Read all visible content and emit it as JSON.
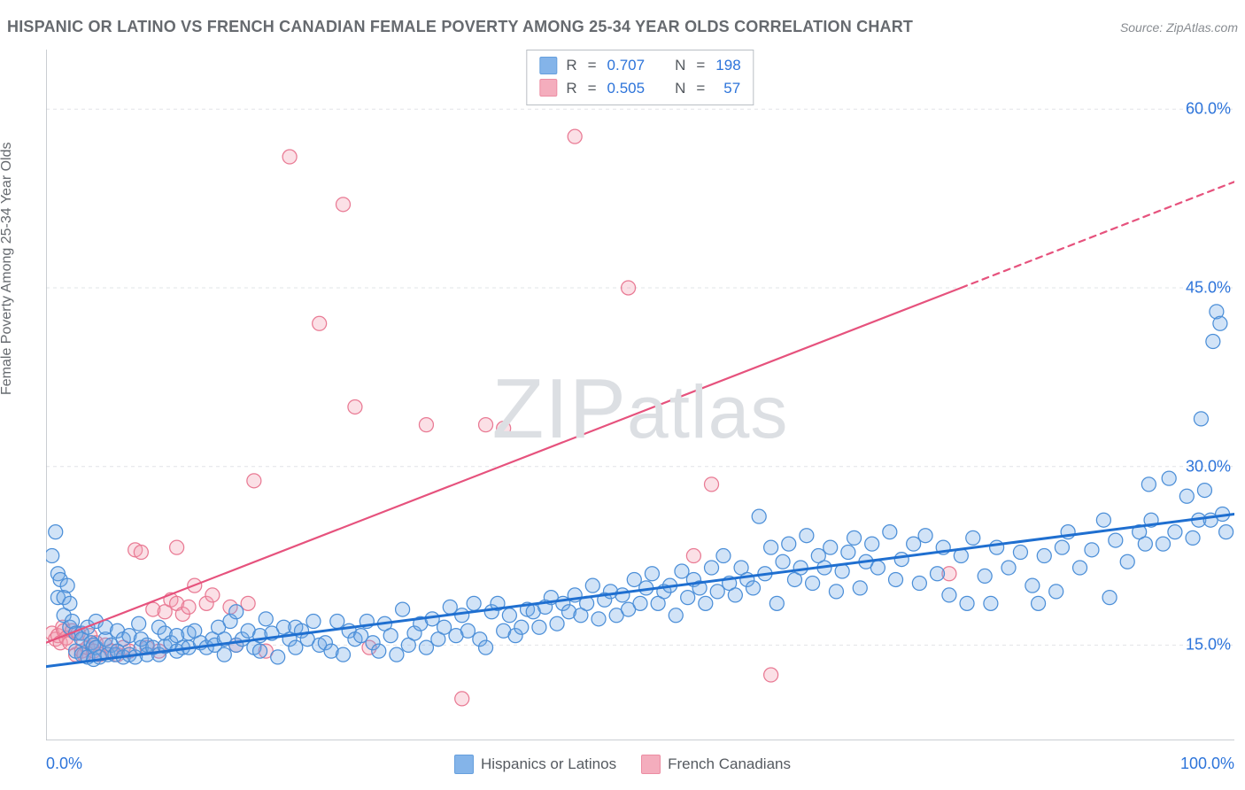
{
  "title": "HISPANIC OR LATINO VS FRENCH CANADIAN FEMALE POVERTY AMONG 25-34 YEAR OLDS CORRELATION CHART",
  "source": "Source: ZipAtlas.com",
  "y_axis_label": "Female Poverty Among 25-34 Year Olds",
  "watermark": "ZIPatlas",
  "chart": {
    "type": "scatter",
    "xlim": [
      0,
      100
    ],
    "ylim": [
      7,
      65
    ],
    "x_ticks": [
      0,
      100
    ],
    "x_tick_labels": [
      "0.0%",
      "100.0%"
    ],
    "y_ticks": [
      15,
      30,
      45,
      60
    ],
    "y_tick_labels": [
      "15.0%",
      "30.0%",
      "45.0%",
      "60.0%"
    ],
    "background_color": "#ffffff",
    "grid_color": "#e2e4e7",
    "grid_dash": "4 4",
    "axis_line_color": "#b9bec4",
    "x_minor_ticks": [
      0,
      5,
      10,
      15,
      20,
      25,
      30,
      35,
      40,
      45,
      50,
      55,
      60,
      65,
      70,
      75,
      80,
      85,
      90,
      95,
      100
    ],
    "x_inner_major_ticks": [
      25,
      50,
      75
    ],
    "marker_radius": 8,
    "marker_fill_opacity": 0.32,
    "marker_stroke_width": 1.25,
    "tick_label_color": "#2d74da",
    "tick_label_fontsize": 18,
    "axis_label_color": "#666a6f",
    "axis_label_fontsize": 16,
    "title_fontsize": 18,
    "title_color": "#666a6f"
  },
  "legend": {
    "series": [
      {
        "key": "blue",
        "label": "Hispanics or Latinos"
      },
      {
        "key": "pink",
        "label": "French Canadians"
      }
    ],
    "stats": [
      {
        "key": "blue",
        "R": "0.707",
        "N": "198"
      },
      {
        "key": "pink",
        "R": "0.505",
        "N": "57"
      }
    ],
    "R_label": "R",
    "N_label": "N",
    "equals": "="
  },
  "series": {
    "blue": {
      "name": "Hispanics or Latinos",
      "color": "#6FA8E6",
      "stroke": "#4c8fd8",
      "line_color": "#1f6fd0",
      "line_width": 3,
      "trend": {
        "x1": 0,
        "y1": 13.2,
        "x2": 100,
        "y2": 26.0
      },
      "points": [
        [
          0.5,
          22.5
        ],
        [
          0.8,
          24.5
        ],
        [
          1,
          21
        ],
        [
          1,
          19
        ],
        [
          1.2,
          20.5
        ],
        [
          1.5,
          19
        ],
        [
          1.5,
          17.5
        ],
        [
          1.8,
          20
        ],
        [
          2,
          16.5
        ],
        [
          2,
          18.5
        ],
        [
          2.2,
          17
        ],
        [
          2.5,
          14.5
        ],
        [
          2.5,
          16
        ],
        [
          3,
          16
        ],
        [
          3,
          14.2
        ],
        [
          3,
          15.5
        ],
        [
          3.5,
          16.5
        ],
        [
          3.5,
          14
        ],
        [
          3.8,
          15.2
        ],
        [
          4,
          15
        ],
        [
          4,
          13.8
        ],
        [
          4.2,
          14.8
        ],
        [
          4.2,
          17
        ],
        [
          4.5,
          14
        ],
        [
          5,
          15.5
        ],
        [
          5,
          16.5
        ],
        [
          5.2,
          14.2
        ],
        [
          5.5,
          15
        ],
        [
          5.8,
          14.2
        ],
        [
          6,
          16.2
        ],
        [
          6,
          14.5
        ],
        [
          6.5,
          15.5
        ],
        [
          6.5,
          14
        ],
        [
          7,
          14.2
        ],
        [
          7,
          15.8
        ],
        [
          7.5,
          14
        ],
        [
          7.8,
          16.8
        ],
        [
          8,
          14.8
        ],
        [
          8,
          15.5
        ],
        [
          8.5,
          15
        ],
        [
          8.5,
          14.2
        ],
        [
          9,
          14.8
        ],
        [
          9.5,
          16.5
        ],
        [
          9.5,
          14.2
        ],
        [
          10,
          14.9
        ],
        [
          10,
          16
        ],
        [
          10.5,
          15.2
        ],
        [
          11,
          14.5
        ],
        [
          11,
          15.8
        ],
        [
          11.5,
          14.8
        ],
        [
          12,
          14.8
        ],
        [
          12,
          16
        ],
        [
          12.5,
          16.2
        ],
        [
          13,
          15.2
        ],
        [
          13.5,
          14.8
        ],
        [
          14,
          15.5
        ],
        [
          14.2,
          15
        ],
        [
          14.5,
          16.5
        ],
        [
          15,
          15.5
        ],
        [
          15,
          14.2
        ],
        [
          15.5,
          17
        ],
        [
          16,
          17.8
        ],
        [
          16,
          15
        ],
        [
          16.5,
          15.5
        ],
        [
          17,
          16.2
        ],
        [
          17.5,
          14.8
        ],
        [
          18,
          15.8
        ],
        [
          18,
          14.5
        ],
        [
          18.5,
          17.2
        ],
        [
          19,
          16
        ],
        [
          19.5,
          14
        ],
        [
          20,
          16.5
        ],
        [
          20.5,
          15.5
        ],
        [
          21,
          16.5
        ],
        [
          21,
          14.8
        ],
        [
          21.5,
          16.2
        ],
        [
          22,
          15.5
        ],
        [
          22.5,
          17
        ],
        [
          23,
          15
        ],
        [
          23.5,
          15.2
        ],
        [
          24,
          14.5
        ],
        [
          24.5,
          17
        ],
        [
          25,
          14.2
        ],
        [
          25.5,
          16.2
        ],
        [
          26,
          15.5
        ],
        [
          26.5,
          15.8
        ],
        [
          27,
          17
        ],
        [
          27.5,
          15.2
        ],
        [
          28,
          14.5
        ],
        [
          28.5,
          16.8
        ],
        [
          29,
          15.8
        ],
        [
          29.5,
          14.2
        ],
        [
          30,
          18
        ],
        [
          30.5,
          15
        ],
        [
          31,
          16
        ],
        [
          31.5,
          16.8
        ],
        [
          32,
          14.8
        ],
        [
          32.5,
          17.2
        ],
        [
          33,
          15.5
        ],
        [
          33.5,
          16.5
        ],
        [
          34,
          18.2
        ],
        [
          34.5,
          15.8
        ],
        [
          35,
          17.5
        ],
        [
          35.5,
          16.2
        ],
        [
          36,
          18.5
        ],
        [
          36.5,
          15.5
        ],
        [
          37,
          14.8
        ],
        [
          37.5,
          17.8
        ],
        [
          38,
          18.5
        ],
        [
          38.5,
          16.2
        ],
        [
          39,
          17.5
        ],
        [
          39.5,
          15.8
        ],
        [
          40,
          16.5
        ],
        [
          40.5,
          18
        ],
        [
          41,
          17.8
        ],
        [
          41.5,
          16.5
        ],
        [
          42,
          18.2
        ],
        [
          42.5,
          19
        ],
        [
          43,
          16.8
        ],
        [
          43.5,
          18.5
        ],
        [
          44,
          17.8
        ],
        [
          44.5,
          19.2
        ],
        [
          45,
          17.5
        ],
        [
          45.5,
          18.5
        ],
        [
          46,
          20
        ],
        [
          46.5,
          17.2
        ],
        [
          47,
          18.8
        ],
        [
          47.5,
          19.5
        ],
        [
          48,
          17.5
        ],
        [
          48.5,
          19.2
        ],
        [
          49,
          18
        ],
        [
          49.5,
          20.5
        ],
        [
          50,
          18.5
        ],
        [
          50.5,
          19.8
        ],
        [
          51,
          21
        ],
        [
          51.5,
          18.5
        ],
        [
          52,
          19.5
        ],
        [
          52.5,
          20
        ],
        [
          53,
          17.5
        ],
        [
          53.5,
          21.2
        ],
        [
          54,
          19
        ],
        [
          54.5,
          20.5
        ],
        [
          55,
          19.8
        ],
        [
          55.5,
          18.5
        ],
        [
          56,
          21.5
        ],
        [
          56.5,
          19.5
        ],
        [
          57,
          22.5
        ],
        [
          57.5,
          20.2
        ],
        [
          58,
          19.2
        ],
        [
          58.5,
          21.5
        ],
        [
          59,
          20.5
        ],
        [
          59.5,
          19.8
        ],
        [
          60,
          25.8
        ],
        [
          60.5,
          21
        ],
        [
          61,
          23.2
        ],
        [
          61.5,
          18.5
        ],
        [
          62,
          22
        ],
        [
          62.5,
          23.5
        ],
        [
          63,
          20.5
        ],
        [
          63.5,
          21.5
        ],
        [
          64,
          24.2
        ],
        [
          64.5,
          20.2
        ],
        [
          65,
          22.5
        ],
        [
          65.5,
          21.5
        ],
        [
          66,
          23.2
        ],
        [
          66.5,
          19.5
        ],
        [
          67,
          21.2
        ],
        [
          67.5,
          22.8
        ],
        [
          68,
          24
        ],
        [
          68.5,
          19.8
        ],
        [
          69,
          22
        ],
        [
          69.5,
          23.5
        ],
        [
          70,
          21.5
        ],
        [
          71,
          24.5
        ],
        [
          71.5,
          20.5
        ],
        [
          72,
          22.2
        ],
        [
          73,
          23.5
        ],
        [
          73.5,
          20.2
        ],
        [
          74,
          24.2
        ],
        [
          75,
          21
        ],
        [
          75.5,
          23.2
        ],
        [
          76,
          19.2
        ],
        [
          77,
          22.5
        ],
        [
          77.5,
          18.5
        ],
        [
          78,
          24
        ],
        [
          79,
          20.8
        ],
        [
          79.5,
          18.5
        ],
        [
          80,
          23.2
        ],
        [
          81,
          21.5
        ],
        [
          82,
          22.8
        ],
        [
          83,
          20
        ],
        [
          83.5,
          18.5
        ],
        [
          84,
          22.5
        ],
        [
          85,
          19.5
        ],
        [
          85.5,
          23.2
        ],
        [
          86,
          24.5
        ],
        [
          87,
          21.5
        ],
        [
          88,
          23
        ],
        [
          89,
          25.5
        ],
        [
          89.5,
          19
        ],
        [
          90,
          23.8
        ],
        [
          91,
          22
        ],
        [
          92,
          24.5
        ],
        [
          92.5,
          23.5
        ],
        [
          92.8,
          28.5
        ],
        [
          93,
          25.5
        ],
        [
          94,
          23.5
        ],
        [
          94.5,
          29
        ],
        [
          95,
          24.5
        ],
        [
          96,
          27.5
        ],
        [
          96.5,
          24
        ],
        [
          97,
          25.5
        ],
        [
          97.2,
          34
        ],
        [
          97.5,
          28
        ],
        [
          98,
          25.5
        ],
        [
          98.2,
          40.5
        ],
        [
          98.5,
          43
        ],
        [
          98.8,
          42
        ],
        [
          99,
          26
        ],
        [
          99.3,
          24.5
        ]
      ]
    },
    "pink": {
      "name": "French Canadians",
      "color": "#F39FB2",
      "stroke": "#E97A94",
      "line_color": "#E6527D",
      "line_width": 2.2,
      "trend_solid": {
        "x1": 0,
        "y1": 15.2,
        "x2": 77,
        "y2": 45.0
      },
      "trend_dashed": {
        "x1": 77,
        "y1": 45.0,
        "x2": 100,
        "y2": 53.9
      },
      "dash": "7 6",
      "points": [
        [
          0.5,
          16
        ],
        [
          0.8,
          15.5
        ],
        [
          1,
          15.8
        ],
        [
          1.2,
          15.2
        ],
        [
          1.4,
          16.5
        ],
        [
          1.5,
          16.2
        ],
        [
          1.7,
          15.6
        ],
        [
          2,
          15.2
        ],
        [
          2.2,
          16.2
        ],
        [
          2.5,
          14.2
        ],
        [
          2.7,
          16
        ],
        [
          3,
          14.5
        ],
        [
          3.2,
          14.2
        ],
        [
          3.5,
          14.8
        ],
        [
          3.7,
          15.8
        ],
        [
          4,
          14.5
        ],
        [
          4.2,
          15.2
        ],
        [
          4.5,
          14.2
        ],
        [
          5,
          15
        ],
        [
          5.5,
          14.5
        ],
        [
          6,
          14.2
        ],
        [
          6.5,
          14.8
        ],
        [
          7,
          14.5
        ],
        [
          7.5,
          23
        ],
        [
          8,
          22.8
        ],
        [
          8.5,
          14.8
        ],
        [
          9,
          18
        ],
        [
          9.5,
          14.5
        ],
        [
          10,
          17.8
        ],
        [
          10.5,
          18.8
        ],
        [
          11,
          18.5
        ],
        [
          11,
          23.2
        ],
        [
          11.5,
          17.6
        ],
        [
          12,
          18.2
        ],
        [
          12.5,
          20
        ],
        [
          13.5,
          18.5
        ],
        [
          14,
          19.2
        ],
        [
          15.5,
          18.2
        ],
        [
          16,
          15
        ],
        [
          17,
          18.5
        ],
        [
          17.5,
          28.8
        ],
        [
          18.5,
          14.5
        ],
        [
          20.5,
          56
        ],
        [
          23,
          42
        ],
        [
          25,
          52
        ],
        [
          26,
          35
        ],
        [
          27.2,
          14.8
        ],
        [
          32,
          33.5
        ],
        [
          35,
          10.5
        ],
        [
          37,
          33.5
        ],
        [
          38.5,
          33.2
        ],
        [
          44.5,
          57.7
        ],
        [
          49,
          45
        ],
        [
          54.5,
          22.5
        ],
        [
          56,
          28.5
        ],
        [
          61,
          12.5
        ],
        [
          76,
          21
        ]
      ]
    }
  }
}
